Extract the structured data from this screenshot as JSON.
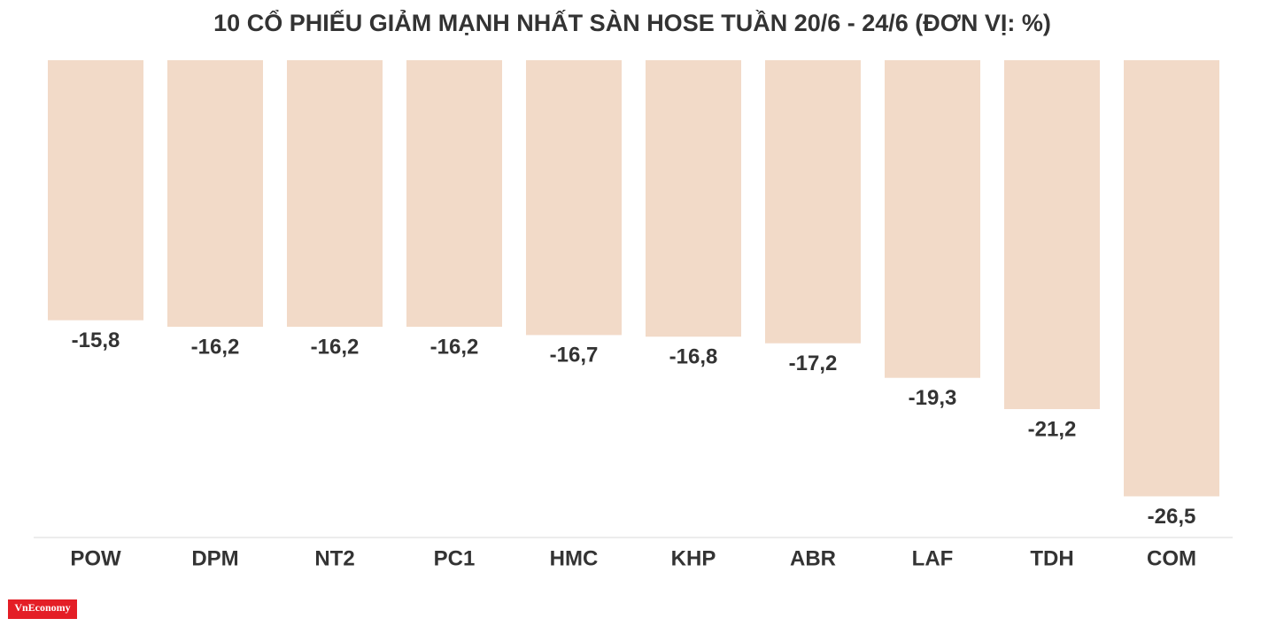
{
  "chart_data": {
    "type": "bar",
    "title": "10 CỔ PHIẾU GIẢM MẠNH NHẤT SÀN HOSE TUẦN 20/6 - 24/6 (ĐƠN VỊ: %)",
    "categories": [
      "POW",
      "DPM",
      "NT2",
      "PC1",
      "HMC",
      "KHP",
      "ABR",
      "LAF",
      "TDH",
      "COM"
    ],
    "values": [
      -15.8,
      -16.2,
      -16.2,
      -16.2,
      -16.7,
      -16.8,
      -17.2,
      -19.3,
      -21.2,
      -26.5
    ],
    "value_labels": [
      "-15,8",
      "-16,2",
      "-16,2",
      "-16,2",
      "-16,7",
      "-16,8",
      "-17,2",
      "-19,3",
      "-21,2",
      "-26,5"
    ],
    "color": "#f2dac8",
    "ylim": [
      -29,
      0
    ],
    "logo": "VnEconomy"
  }
}
